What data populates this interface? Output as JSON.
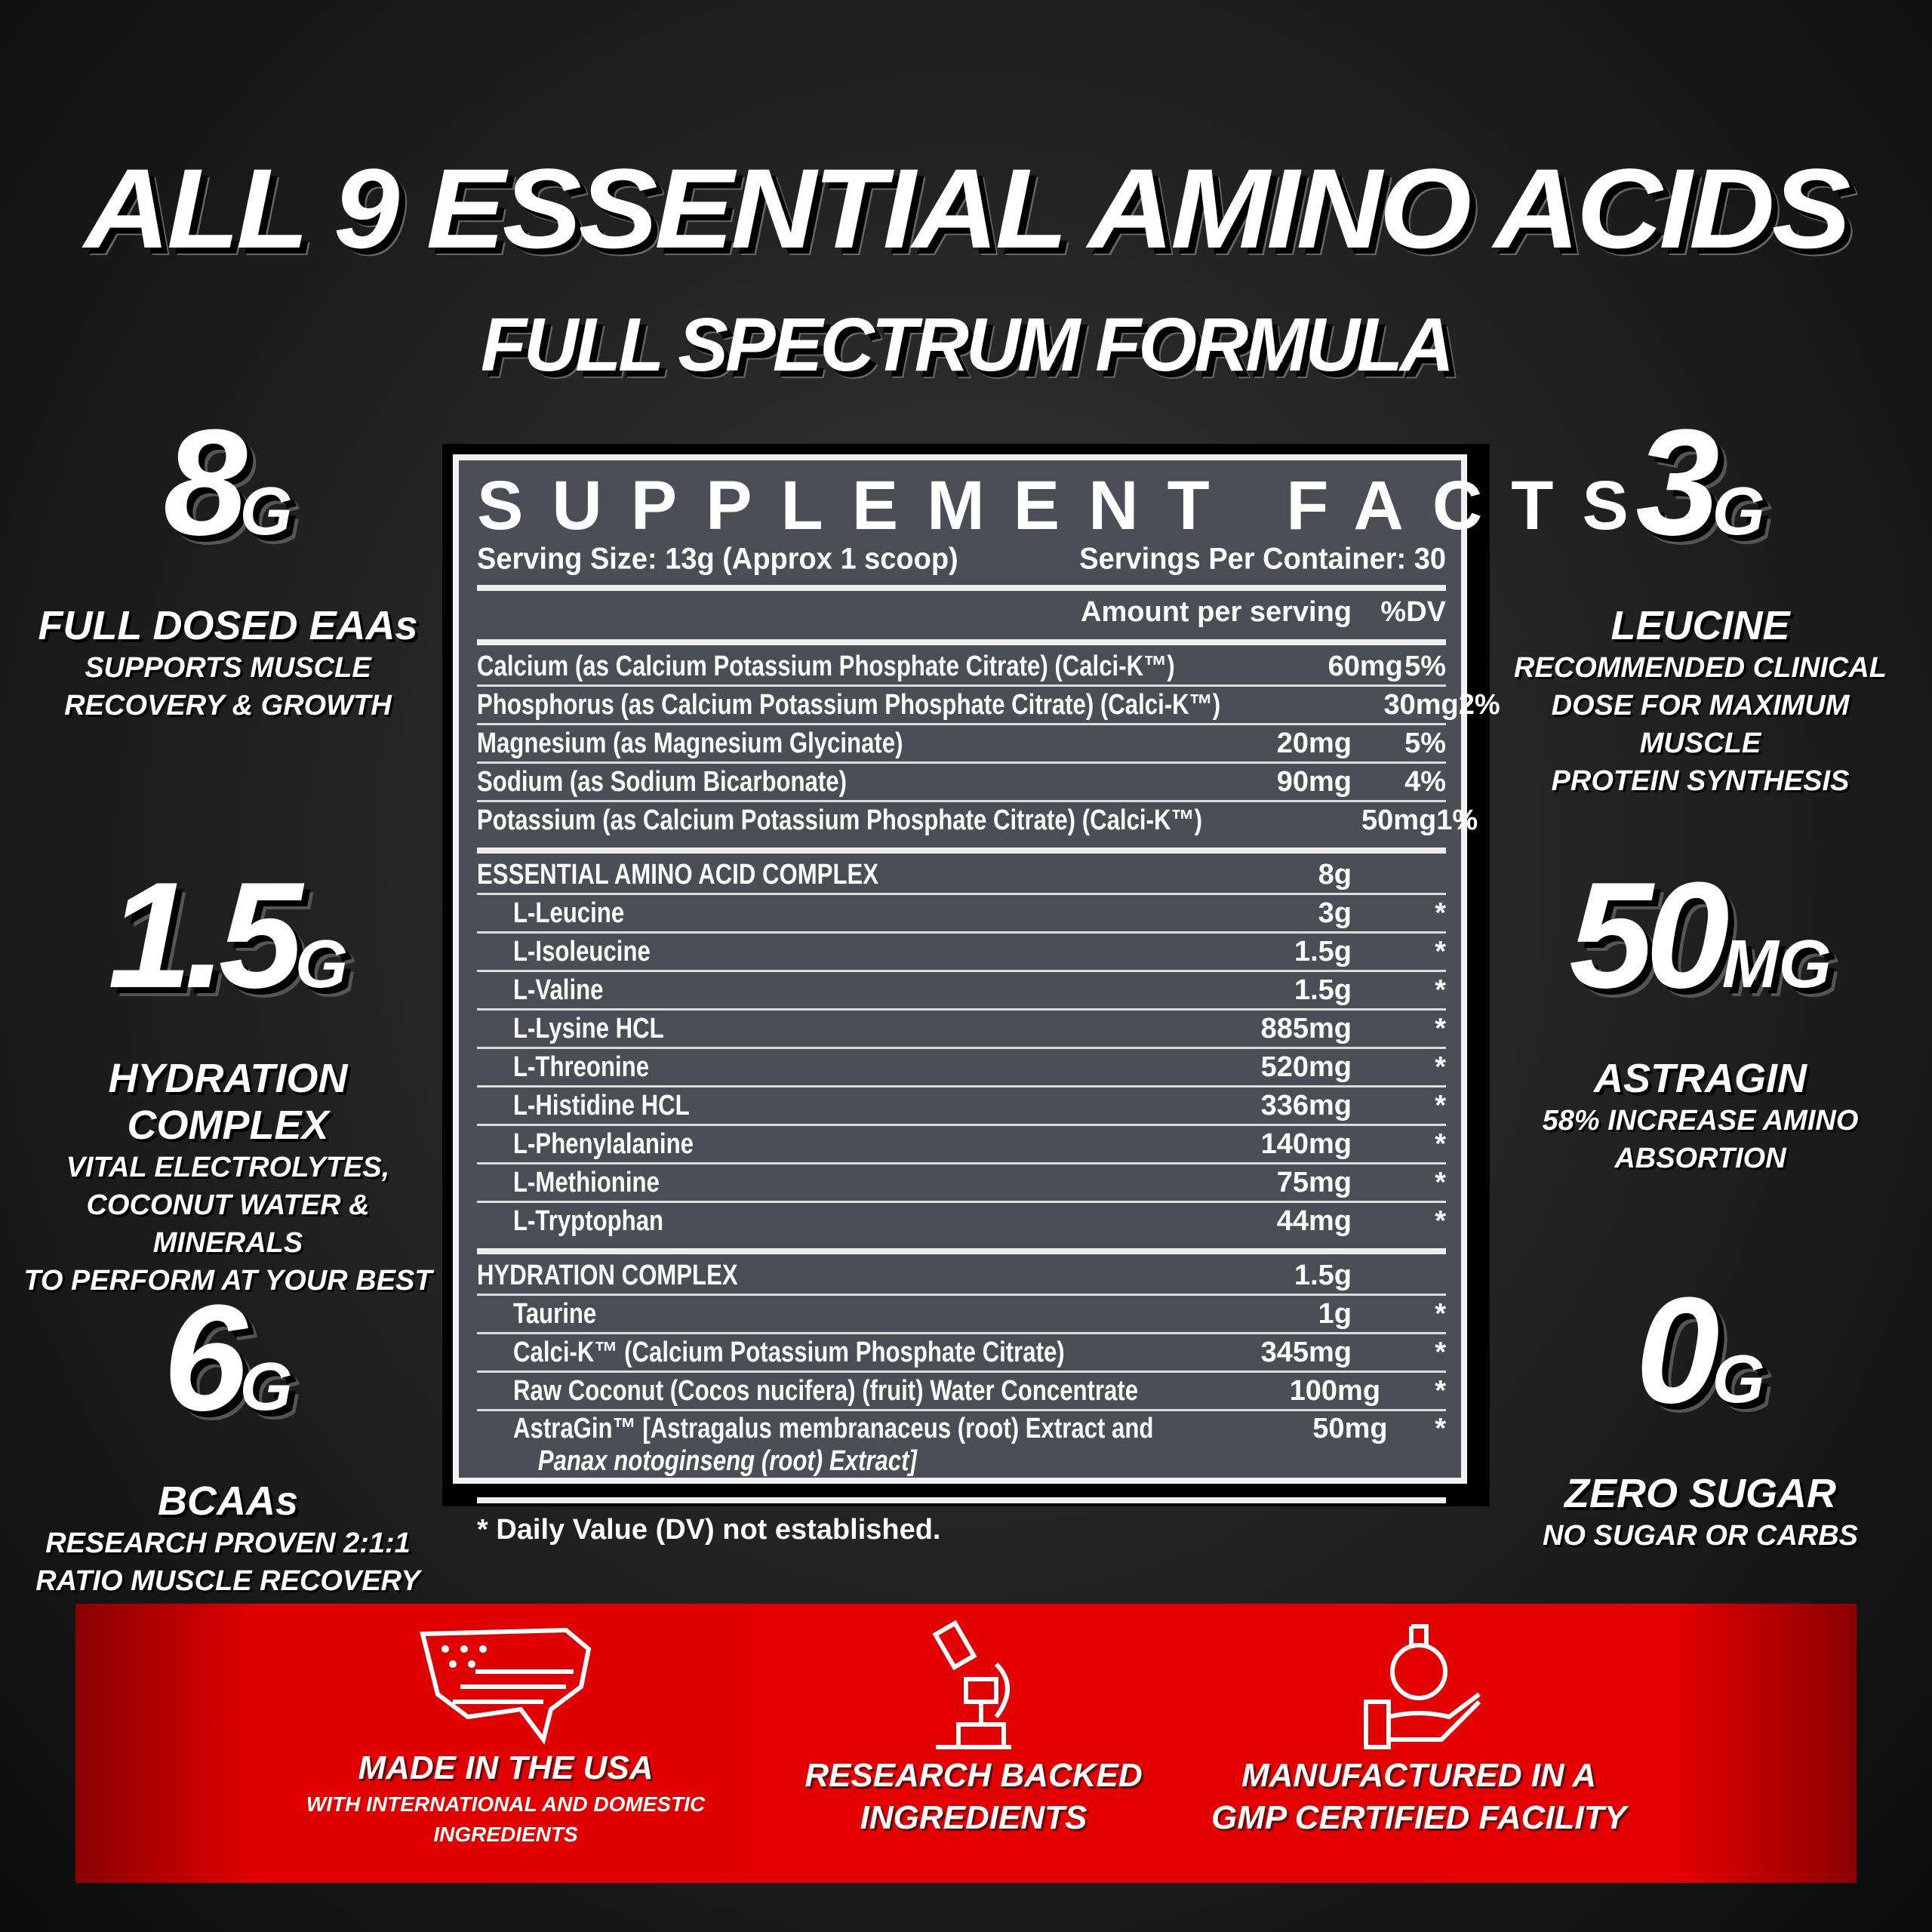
{
  "header": {
    "title": "ALL 9 ESSENTIAL AMINO ACIDS",
    "subtitle": "FULL SPECTRUM FORMULA"
  },
  "left_stats": [
    {
      "value": "8",
      "unit": "G",
      "heading": "FULL DOSED EAAs",
      "lines": [
        "SUPPORTS MUSCLE",
        "RECOVERY & GROWTH"
      ]
    },
    {
      "value": "1.5",
      "unit": "G",
      "heading": "HYDRATION COMPLEX",
      "lines": [
        "VITAL ELECTROLYTES,",
        "COCONUT WATER & MINERALS",
        "TO PERFORM AT YOUR BEST"
      ]
    },
    {
      "value": "6",
      "unit": "G",
      "heading": "BCAAs",
      "lines": [
        "RESEARCH PROVEN 2:1:1",
        "RATIO MUSCLE RECOVERY"
      ]
    }
  ],
  "right_stats": [
    {
      "value": "3",
      "unit": "G",
      "heading": "LEUCINE",
      "lines": [
        "RECOMMENDED CLINICAL",
        "DOSE FOR MAXIMUM MUSCLE",
        "PROTEIN SYNTHESIS"
      ]
    },
    {
      "value": "50",
      "unit": "MG",
      "heading": "ASTRAGIN",
      "lines": [
        "58% INCREASE AMINO",
        "ABSORTION"
      ]
    },
    {
      "value": "0",
      "unit": "G",
      "heading": "ZERO SUGAR",
      "lines": [
        "NO SUGAR OR CARBS"
      ]
    }
  ],
  "facts": {
    "title": "SUPPLEMENT FACTS",
    "serving_size": "Serving Size: 13g (Approx 1 scoop)",
    "servings_per_container": "Servings Per Container: 30",
    "col_amount": "Amount per serving",
    "col_dv": "%DV",
    "rows": [
      {
        "name": "Calcium (as Calcium Potassium Phosphate Citrate) (Calci-K™)",
        "amount": "60mg",
        "dv": "5%"
      },
      {
        "name": "Phosphorus (as Calcium Potassium Phosphate Citrate) (Calci-K™)",
        "amount": "30mg",
        "dv": "2%"
      },
      {
        "name": "Magnesium (as Magnesium Glycinate)",
        "amount": "20mg",
        "dv": "5%"
      },
      {
        "name": "Sodium (as Sodium Bicarbonate)",
        "amount": "90mg",
        "dv": "4%"
      },
      {
        "name": "Potassium (as Calcium Potassium Phosphate Citrate) (Calci-K™)",
        "amount": "50mg",
        "dv": "1%",
        "thick_after": true
      },
      {
        "name": "ESSENTIAL AMINO ACID COMPLEX",
        "amount": "8g",
        "dv": ""
      },
      {
        "name": "L-Leucine",
        "amount": "3g",
        "dv": "*",
        "sub": true
      },
      {
        "name": "L-Isoleucine",
        "amount": "1.5g",
        "dv": "*",
        "sub": true
      },
      {
        "name": "L-Valine",
        "amount": "1.5g",
        "dv": "*",
        "sub": true
      },
      {
        "name": "L-Lysine HCL",
        "amount": "885mg",
        "dv": "*",
        "sub": true
      },
      {
        "name": "L-Threonine",
        "amount": "520mg",
        "dv": "*",
        "sub": true
      },
      {
        "name": "L-Histidine HCL",
        "amount": "336mg",
        "dv": "*",
        "sub": true
      },
      {
        "name": "L-Phenylalanine",
        "amount": "140mg",
        "dv": "*",
        "sub": true
      },
      {
        "name": "L-Methionine",
        "amount": "75mg",
        "dv": "*",
        "sub": true
      },
      {
        "name": "L-Tryptophan",
        "amount": "44mg",
        "dv": "*",
        "sub": true,
        "thick_after": true
      },
      {
        "name": "HYDRATION COMPLEX",
        "amount": "1.5g",
        "dv": ""
      },
      {
        "name": "Taurine",
        "amount": "1g",
        "dv": "*",
        "sub": true
      },
      {
        "name": "Calci-K™ (Calcium Potassium Phosphate Citrate)",
        "amount": "345mg",
        "dv": "*",
        "sub": true
      },
      {
        "name": "Raw Coconut (Cocos nucifera) (fruit) Water Concentrate",
        "amount": "100mg",
        "dv": "*",
        "sub": true
      },
      {
        "name": "AstraGin™ [Astragalus membranaceus (root) Extract and",
        "name2": "Panax notoginseng (root) Extract]",
        "amount": "50mg",
        "dv": "*",
        "sub": true,
        "tall": true
      }
    ],
    "footnote": "* Daily Value (DV) not established."
  },
  "features": [
    {
      "icon": "usa-flag-map-icon",
      "heading": "MADE IN THE USA",
      "lines": [
        "WITH INTERNATIONAL AND DOMESTIC",
        "INGREDIENTS"
      ]
    },
    {
      "icon": "microscope-icon",
      "heading": "RESEARCH BACKED",
      "lines": [
        "INGREDIENTS"
      ]
    },
    {
      "icon": "flask-hand-icon",
      "heading": "MANUFACTURED IN A",
      "lines": [
        "GMP CERTIFIED FACILITY"
      ]
    }
  ],
  "colors": {
    "background": "#1c1c1c",
    "panel": "#4b4e54",
    "band": "#e00000",
    "text": "#ffffff"
  }
}
